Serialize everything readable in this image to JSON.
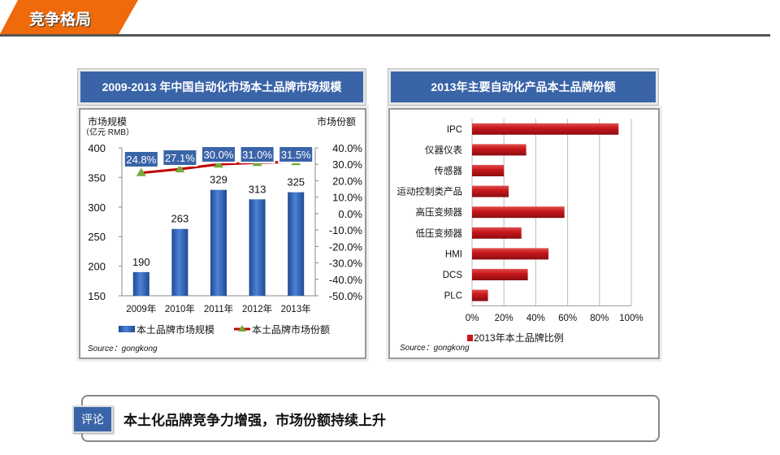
{
  "header": {
    "title": "竞争格局"
  },
  "comment": {
    "badge": "评论",
    "text": "本土化品牌竞争力增强，市场份额持续上升"
  },
  "colors": {
    "orange": "#ee6a0b",
    "blue": "#3a64a8",
    "bar_blue": "#2f62b5",
    "line_red": "#c00000",
    "marker_green": "#77a836",
    "bar_red": "#c8181c"
  },
  "chart_data": [
    {
      "type": "bar+line",
      "title": "2009-2013 年中国自动化市场本土品牌市场规模",
      "ylabel_left": "市场规模",
      "ylabel_left_unit": "（亿元 RMB）",
      "ylabel_right": "市场份额",
      "categories": [
        "2009年",
        "2010年",
        "2011年",
        "2012年",
        "2013年"
      ],
      "y_left_ticks": [
        "400",
        "350",
        "300",
        "250",
        "200",
        "150"
      ],
      "y_right_ticks": [
        "40.0%",
        "30.0%",
        "20.0%",
        "10.0%",
        "0.0%",
        "-10.0%",
        "-20.0%",
        "-30.0%",
        "-40.0%",
        "-50.0%"
      ],
      "ylim_left": [
        150,
        400
      ],
      "ylim_right": [
        -50,
        40
      ],
      "series": [
        {
          "name": "本土品牌市场规模",
          "type": "bar",
          "values": [
            190,
            263,
            329,
            313,
            325
          ],
          "labels": [
            "190",
            "263",
            "329",
            "313",
            "325"
          ]
        },
        {
          "name": "本土品牌市场份额",
          "type": "line",
          "values": [
            24.8,
            27.1,
            30.0,
            31.0,
            31.5
          ],
          "labels": [
            "24.8%",
            "27.1%",
            "30.0%",
            "31.0%",
            "31.5%"
          ]
        }
      ],
      "source": "Source：gongkong"
    },
    {
      "type": "bar",
      "orientation": "horizontal",
      "title": "2013年主要自动化产品本土品牌份额",
      "categories": [
        "IPC",
        "仪器仪表",
        "传感器",
        "运动控制类产品",
        "高压变频器",
        "低压变频器",
        "HMI",
        "DCS",
        "PLC"
      ],
      "values": [
        92,
        34,
        20,
        23,
        58,
        31,
        48,
        35,
        10
      ],
      "x_ticks": [
        "0%",
        "20%",
        "40%",
        "60%",
        "80%",
        "100%"
      ],
      "xlim": [
        0,
        100
      ],
      "legend": "2013年本土品牌比例",
      "source": "Source：gongkong"
    }
  ]
}
